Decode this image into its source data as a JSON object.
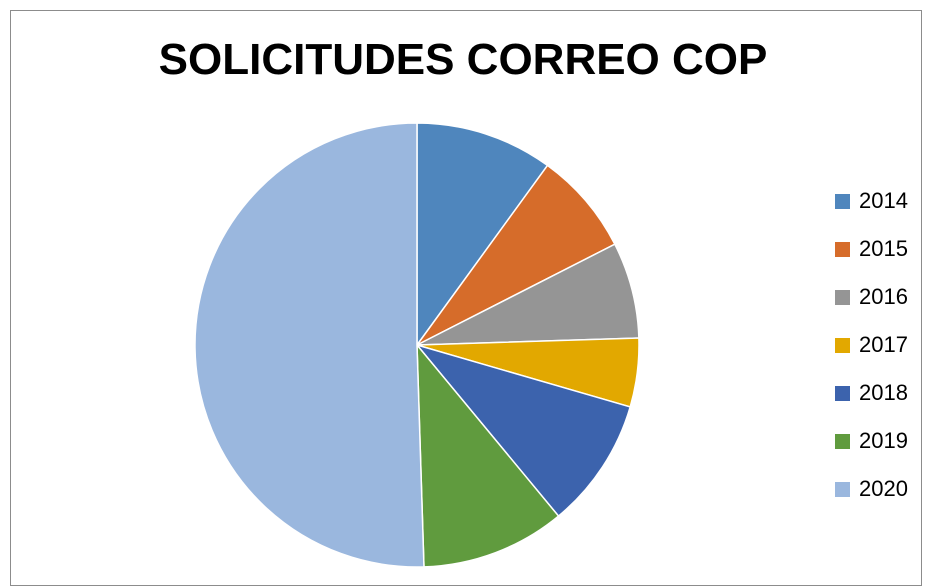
{
  "chart_data": {
    "type": "pie",
    "title": "SOLICITUDES CORREO COP",
    "legend_position": "right",
    "categories": [
      "2014",
      "2015",
      "2016",
      "2017",
      "2018",
      "2019",
      "2020"
    ],
    "values": [
      10,
      7.5,
      7,
      5,
      9.5,
      10.5,
      50.5
    ],
    "colors": [
      "#4f86bd",
      "#d66c2a",
      "#959595",
      "#e2a800",
      "#3c63ad",
      "#609b3e",
      "#9ab7de"
    ]
  }
}
